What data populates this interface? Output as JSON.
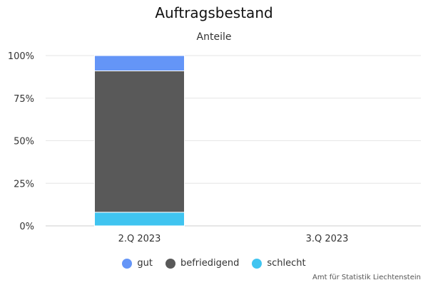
{
  "chart_data": {
    "type": "bar",
    "stacked": true,
    "normalized": true,
    "title": "Auftragsbestand",
    "subtitle": "Anteile",
    "categories": [
      "2.Q 2023",
      "3.Q 2023"
    ],
    "series": [
      {
        "name": "gut",
        "color": "#6495f7",
        "values": [
          9,
          null
        ]
      },
      {
        "name": "befriedigend",
        "color": "#595959",
        "values": [
          83,
          null
        ]
      },
      {
        "name": "schlecht",
        "color": "#40c4f0",
        "values": [
          8,
          null
        ]
      }
    ],
    "y_ticks": [
      "0%",
      "25%",
      "50%",
      "75%",
      "100%"
    ],
    "ylim": [
      0,
      100
    ],
    "grid": true,
    "legend_position": "bottom-center",
    "credits": "Amt für Statistik Liechtenstein"
  }
}
